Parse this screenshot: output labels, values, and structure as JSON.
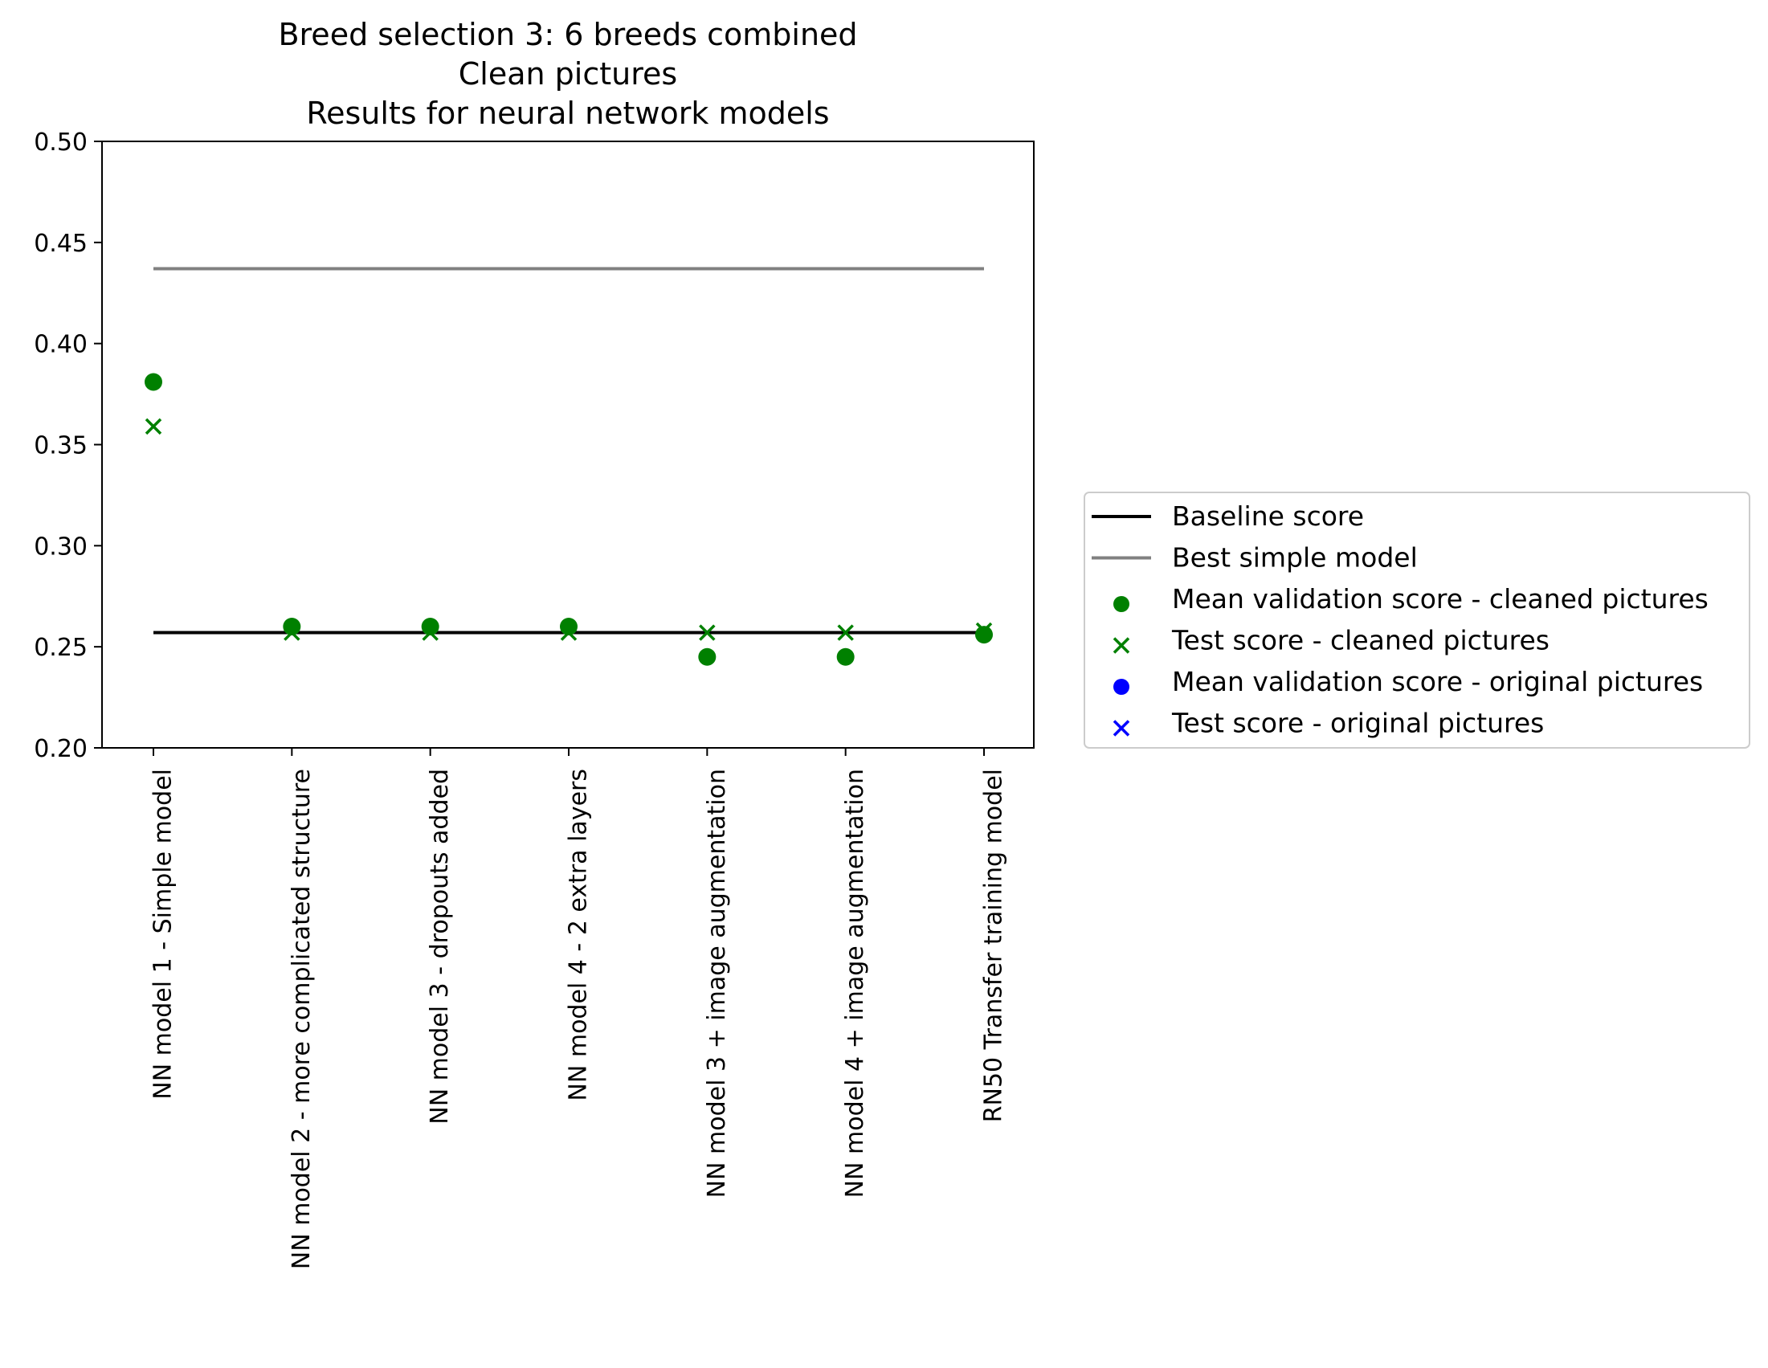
{
  "chart_data": {
    "type": "scatter",
    "title": [
      "Breed selection 3: 6 breeds combined",
      "Clean pictures",
      "Results for neural network models"
    ],
    "xlabel": "",
    "ylabel": "",
    "ylim": [
      0.2,
      0.5
    ],
    "yticks": [
      "0.20",
      "0.25",
      "0.30",
      "0.35",
      "0.40",
      "0.45",
      "0.50"
    ],
    "categories": [
      "NN model 1 - Simple model",
      "NN model 2 - more complicated structure",
      "NN model 3 - dropouts added",
      "NN model 4 - 2 extra layers",
      "NN model 3 + image augmentation",
      "NN model 4 + image augmentation",
      "RN50 Transfer training model"
    ],
    "lines": [
      {
        "name": "Baseline score",
        "value": 0.257,
        "color": "#000000"
      },
      {
        "name": "Best simple model",
        "value": 0.437,
        "color": "#808080"
      }
    ],
    "series": [
      {
        "name": "Mean validation score - cleaned pictures",
        "marker": "circle",
        "color": "#008000",
        "values": [
          0.381,
          0.26,
          0.26,
          0.26,
          0.245,
          0.245,
          0.256
        ]
      },
      {
        "name": "Test score - cleaned pictures",
        "marker": "x",
        "color": "#008000",
        "values": [
          0.359,
          0.257,
          0.257,
          0.257,
          0.257,
          0.257,
          0.258
        ]
      },
      {
        "name": "Mean validation score - original pictures",
        "marker": "circle",
        "color": "#0000ff",
        "values": []
      },
      {
        "name": "Test score - original pictures",
        "marker": "x",
        "color": "#0000ff",
        "values": []
      }
    ],
    "grid": false,
    "legend_position": "right"
  }
}
